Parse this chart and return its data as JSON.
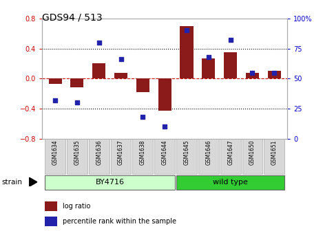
{
  "title": "GDS94 / 513",
  "samples": [
    "GSM1634",
    "GSM1635",
    "GSM1636",
    "GSM1637",
    "GSM1638",
    "GSM1644",
    "GSM1645",
    "GSM1646",
    "GSM1647",
    "GSM1650",
    "GSM1651"
  ],
  "log_ratio": [
    -0.07,
    -0.12,
    0.2,
    0.08,
    -0.18,
    -0.43,
    0.7,
    0.27,
    0.35,
    0.08,
    0.1
  ],
  "percentile": [
    32,
    30,
    80,
    66,
    18,
    10,
    90,
    68,
    82,
    55,
    55
  ],
  "bar_color": "#8B1A1A",
  "dot_color": "#2222AA",
  "ylim": [
    -0.8,
    0.8
  ],
  "y2lim": [
    0,
    100
  ],
  "yticks": [
    -0.8,
    -0.4,
    0.0,
    0.4,
    0.8
  ],
  "y2ticks": [
    0,
    25,
    50,
    75,
    100
  ],
  "hline_color": "#cc0000",
  "dotted_color": "black",
  "dotted_vals": [
    -0.4,
    0.4
  ],
  "groups": [
    {
      "label": "BY4716",
      "start": 0,
      "end": 5,
      "color": "#ccffcc"
    },
    {
      "label": "wild type",
      "start": 6,
      "end": 10,
      "color": "#33cc33"
    }
  ],
  "strain_label": "strain",
  "legend_items": [
    {
      "label": "log ratio",
      "color": "#8B1A1A"
    },
    {
      "label": "percentile rank within the sample",
      "color": "#2222AA"
    }
  ],
  "bg_color": "#ffffff",
  "plot_bg": "#ffffff",
  "title_color": "#000000",
  "left_axis_color": "#cc0000",
  "right_axis_color": "#0000cc",
  "bar_width": 0.6,
  "label_bg": "#d8d8d8",
  "label_edge": "#aaaaaa"
}
